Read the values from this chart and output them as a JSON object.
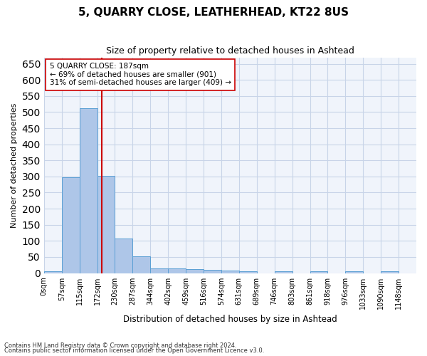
{
  "title": "5, QUARRY CLOSE, LEATHERHEAD, KT22 8US",
  "subtitle": "Size of property relative to detached houses in Ashtead",
  "xlabel": "Distribution of detached houses by size in Ashtead",
  "ylabel": "Number of detached properties",
  "bar_color": "#aec6e8",
  "bar_edge_color": "#5a9fd4",
  "grid_color": "#c8d4e8",
  "background_color": "#f0f4fb",
  "categories": [
    "0sqm",
    "57sqm",
    "115sqm",
    "172sqm",
    "230sqm",
    "287sqm",
    "344sqm",
    "402sqm",
    "459sqm",
    "516sqm",
    "574sqm",
    "631sqm",
    "689sqm",
    "746sqm",
    "803sqm",
    "861sqm",
    "918sqm",
    "976sqm",
    "1033sqm",
    "1090sqm",
    "1148sqm"
  ],
  "values": [
    5,
    298,
    512,
    303,
    107,
    53,
    14,
    15,
    12,
    9,
    7,
    5,
    0,
    5,
    0,
    5,
    0,
    5,
    0,
    5,
    0
  ],
  "ylim": [
    0,
    670
  ],
  "yticks": [
    0,
    50,
    100,
    150,
    200,
    250,
    300,
    350,
    400,
    450,
    500,
    550,
    600,
    650
  ],
  "vline_x": 3.26,
  "vline_color": "#cc0000",
  "annotation_text": "5 QUARRY CLOSE: 187sqm\n← 69% of detached houses are smaller (901)\n31% of semi-detached houses are larger (409) →",
  "annotation_box_color": "white",
  "annotation_box_edge": "#cc0000",
  "footnote1": "Contains HM Land Registry data © Crown copyright and database right 2024.",
  "footnote2": "Contains public sector information licensed under the Open Government Licence v3.0."
}
